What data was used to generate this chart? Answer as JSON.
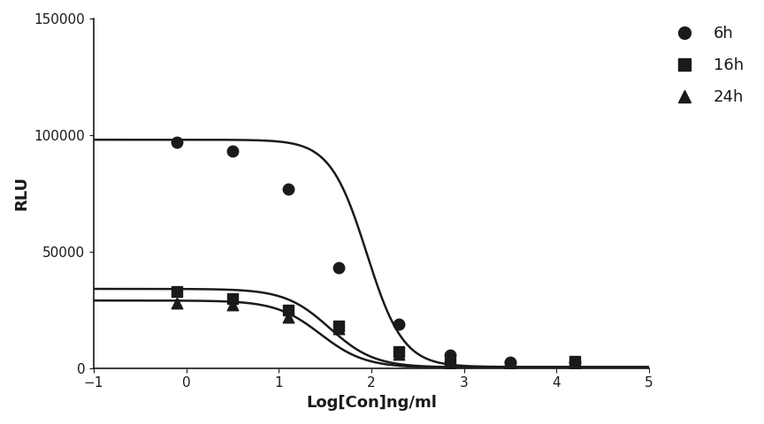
{
  "title": "",
  "xlabel": "Log[Con]ng/ml",
  "ylabel": "RLU",
  "xlim": [
    -1,
    5
  ],
  "ylim": [
    0,
    150000
  ],
  "yticks": [
    0,
    50000,
    100000,
    150000
  ],
  "xticks": [
    -1,
    0,
    1,
    2,
    3,
    4,
    5
  ],
  "series": [
    {
      "label": "6h",
      "marker": "o",
      "color": "#1a1a1a",
      "x_data": [
        -0.1,
        0.5,
        1.1,
        1.65,
        2.3,
        2.85,
        3.5,
        4.2
      ],
      "y_data": [
        97000,
        93000,
        77000,
        43000,
        19000,
        5500,
        2500,
        2500
      ],
      "top": 98000,
      "bottom": 500,
      "log_ec50": 1.95,
      "hill": 2.2
    },
    {
      "label": "16h",
      "marker": "s",
      "color": "#1a1a1a",
      "x_data": [
        -0.1,
        0.5,
        1.1,
        1.65,
        2.3,
        2.85,
        3.5,
        4.2
      ],
      "y_data": [
        33000,
        30000,
        25000,
        18000,
        7000,
        2000,
        1200,
        3000
      ],
      "top": 34000,
      "bottom": 300,
      "log_ec50": 1.55,
      "hill": 1.8
    },
    {
      "label": "24h",
      "marker": "^",
      "color": "#1a1a1a",
      "x_data": [
        -0.1,
        0.5,
        1.1,
        1.65,
        2.3,
        2.85,
        3.5,
        4.2
      ],
      "y_data": [
        28000,
        27000,
        22000,
        17000,
        6000,
        1500,
        800,
        2000
      ],
      "top": 29000,
      "bottom": 200,
      "log_ec50": 1.45,
      "hill": 1.8
    }
  ],
  "figure_bg": "#ffffff",
  "axes_bg": "#ffffff",
  "marker_size": 9,
  "line_width": 1.8,
  "font_color": "#1a1a1a"
}
